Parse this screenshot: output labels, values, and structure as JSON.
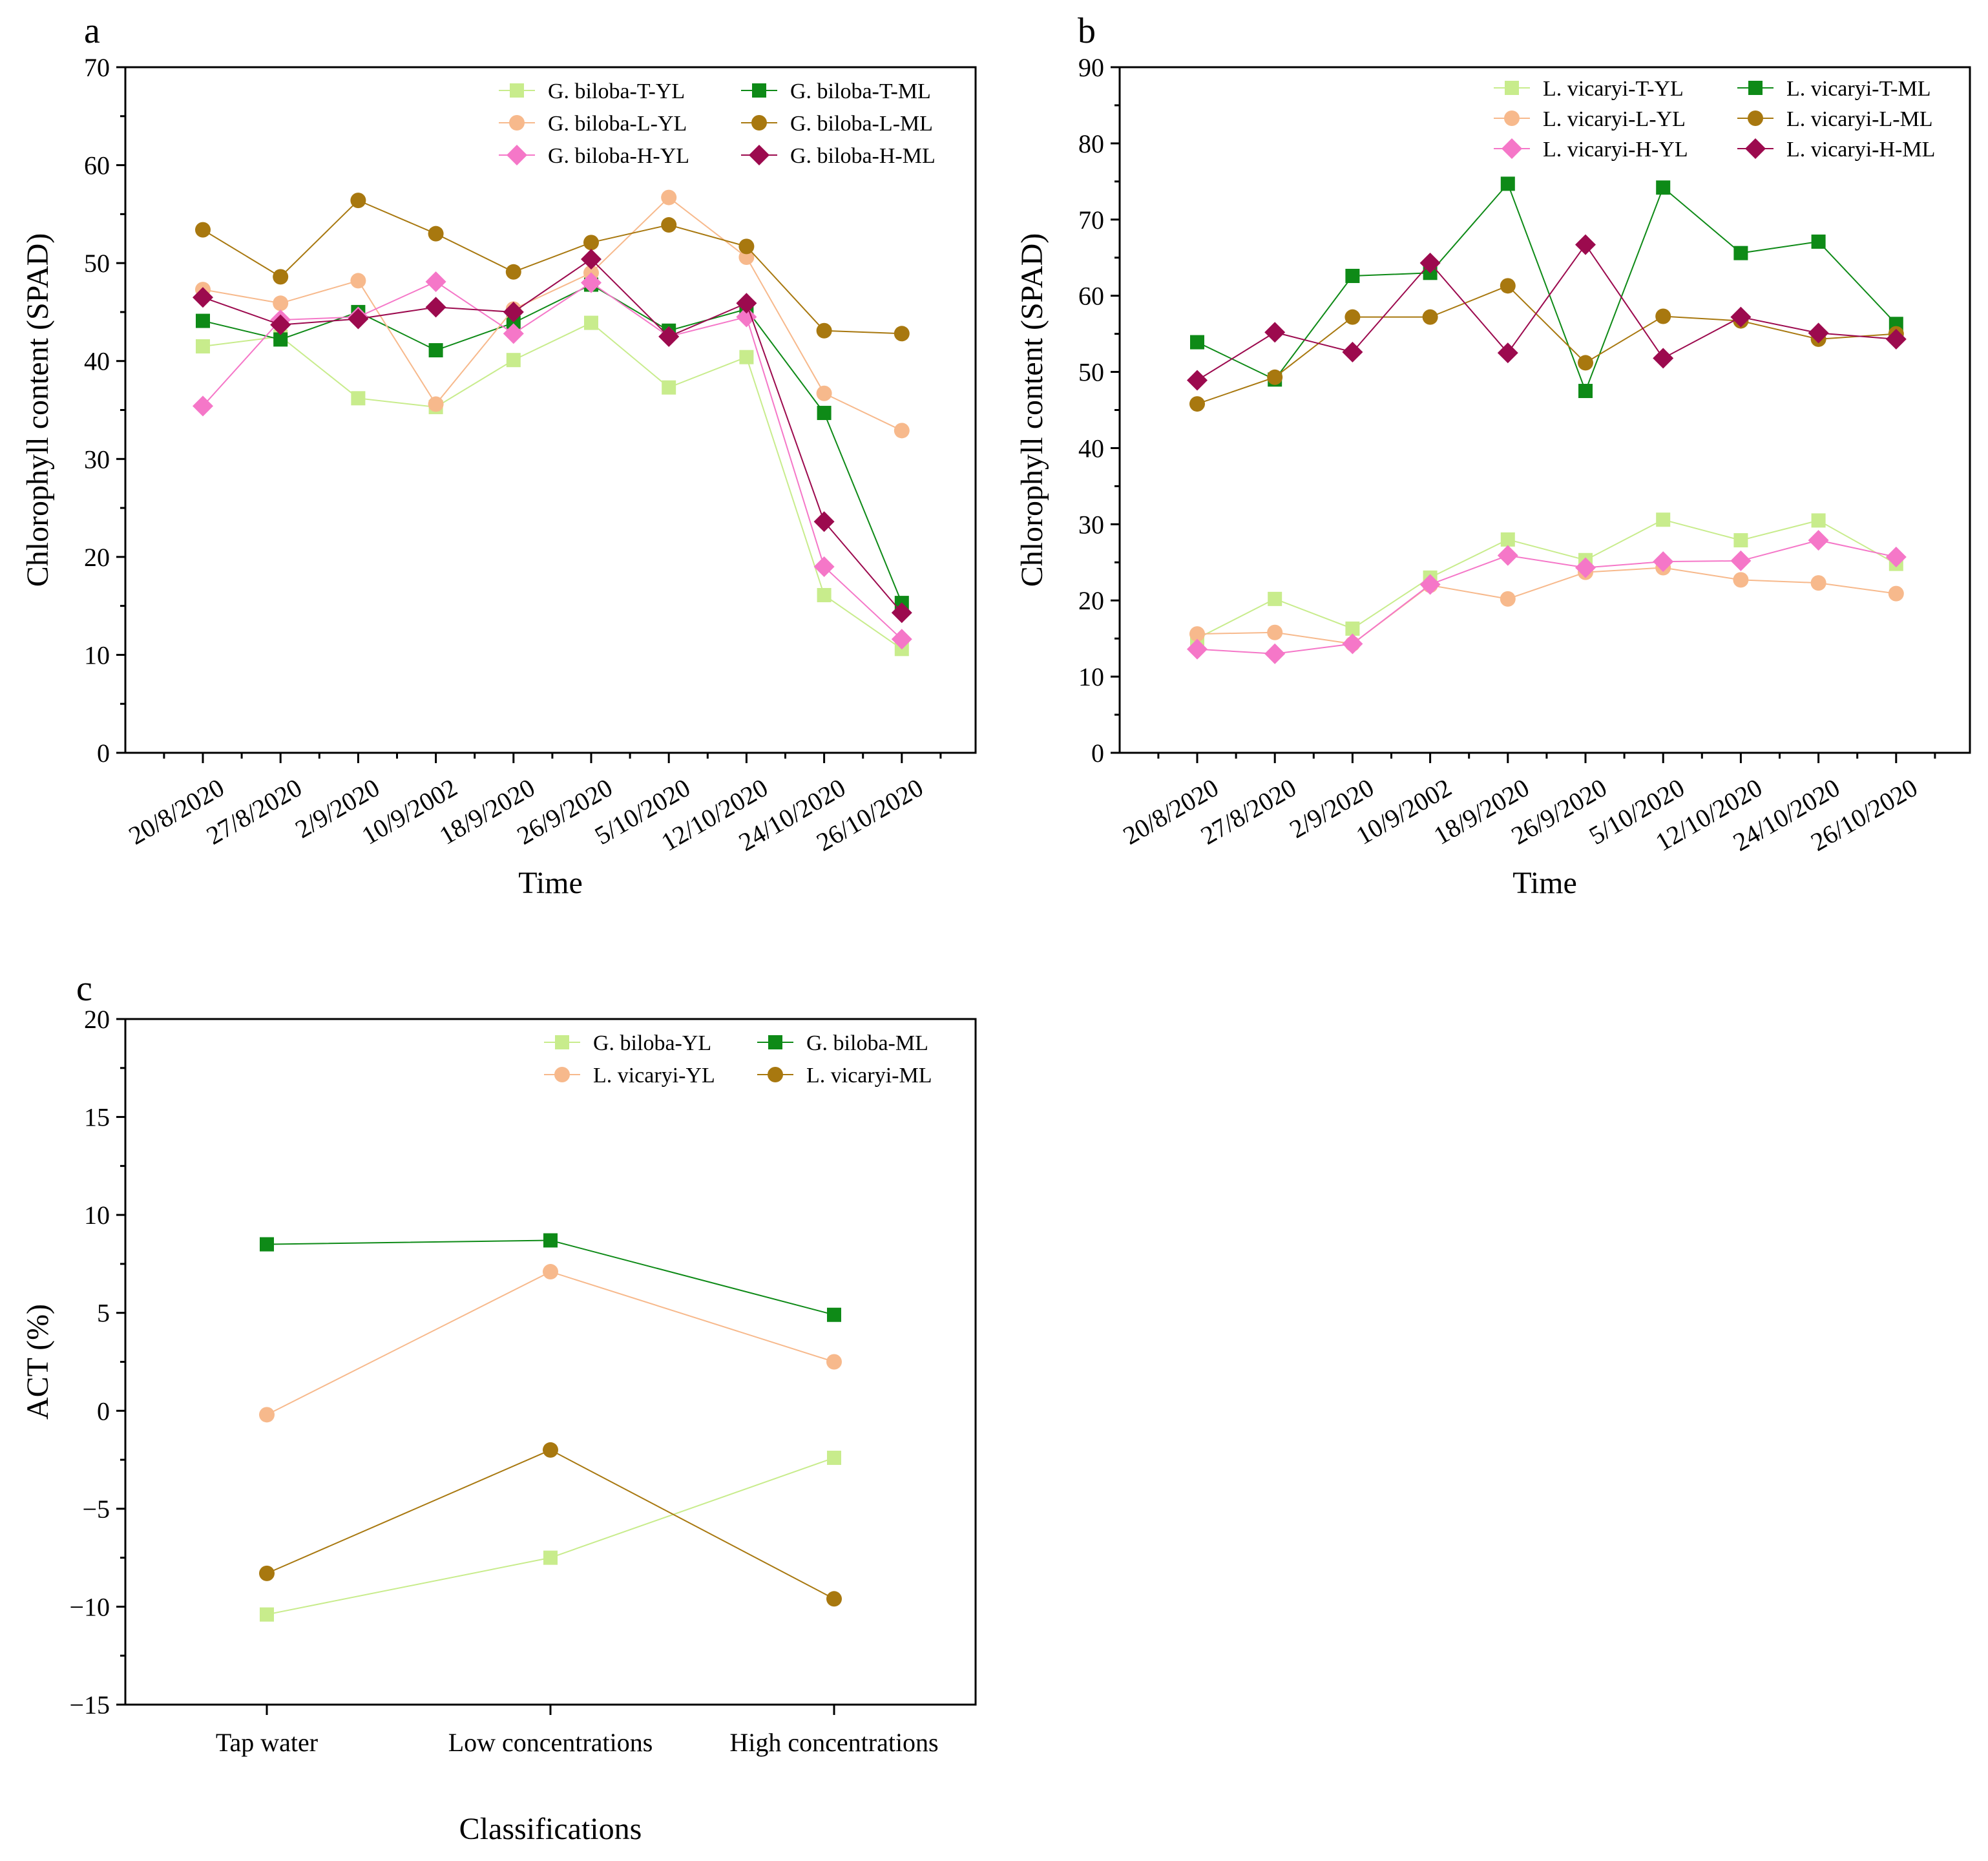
{
  "chart_data": [
    {
      "panel": "a",
      "type": "line",
      "xlabel": "Time",
      "ylabel": "Chlorophyll content (SPAD)",
      "ylim": [
        0,
        70
      ],
      "yticks": [
        0,
        10,
        20,
        30,
        40,
        50,
        60,
        70
      ],
      "categories": [
        "20/8/2020",
        "27/8/2020",
        "2/9/2020",
        "10/9/2002",
        "18/9/2020",
        "26/9/2020",
        "5/10/2020",
        "12/10/2020",
        "24/10/2020",
        "26/10/2020"
      ],
      "series": [
        {
          "name": "G. biloba-T-YL",
          "color": "#c8ec8c",
          "marker": "square",
          "values": [
            41.5,
            42.5,
            36.2,
            35.3,
            40.1,
            43.9,
            37.3,
            40.4,
            16.1,
            10.6
          ]
        },
        {
          "name": "G. biloba-T-ML",
          "color": "#0e8a17",
          "marker": "square",
          "values": [
            44.1,
            42.2,
            45.0,
            41.1,
            43.9,
            47.8,
            43.1,
            45.3,
            34.7,
            15.3
          ]
        },
        {
          "name": "G. biloba-L-YL",
          "color": "#f7b98c",
          "marker": "circle",
          "values": [
            47.3,
            45.9,
            48.2,
            35.6,
            45.3,
            49.0,
            56.7,
            50.6,
            36.7,
            32.9
          ]
        },
        {
          "name": "G. biloba-L-ML",
          "color": "#a8780f",
          "marker": "circle",
          "values": [
            53.4,
            48.6,
            56.4,
            53.0,
            49.1,
            52.1,
            53.9,
            51.7,
            43.1,
            42.8
          ]
        },
        {
          "name": "G. biloba-H-YL",
          "color": "#f577c8",
          "marker": "diamond",
          "values": [
            35.4,
            44.2,
            44.5,
            48.1,
            42.8,
            48.0,
            42.5,
            44.5,
            19.0,
            11.6
          ]
        },
        {
          "name": "G. biloba-H-ML",
          "color": "#9c0a4e",
          "marker": "diamond",
          "values": [
            46.5,
            43.7,
            44.3,
            45.5,
            45.0,
            50.4,
            42.5,
            45.9,
            23.6,
            14.3
          ]
        }
      ]
    },
    {
      "panel": "b",
      "type": "line",
      "xlabel": "Time",
      "ylabel": "Chlorophyll content (SPAD)",
      "ylim": [
        0,
        90
      ],
      "yticks": [
        0,
        10,
        20,
        30,
        40,
        50,
        60,
        70,
        80,
        90
      ],
      "categories": [
        "20/8/2020",
        "27/8/2020",
        "2/9/2020",
        "10/9/2002",
        "18/9/2020",
        "26/9/2020",
        "5/10/2020",
        "12/10/2020",
        "24/10/2020",
        "26/10/2020"
      ],
      "series": [
        {
          "name": "L. vicaryi-T-YL",
          "color": "#c8ec8c",
          "marker": "square",
          "values": [
            15.0,
            20.2,
            16.3,
            23.0,
            28.0,
            25.3,
            30.6,
            27.9,
            30.5,
            24.8
          ]
        },
        {
          "name": "L. vicaryi-T-ML",
          "color": "#0e8a17",
          "marker": "square",
          "values": [
            53.9,
            49.0,
            62.6,
            63.0,
            74.7,
            47.5,
            74.2,
            65.6,
            67.1,
            56.3
          ]
        },
        {
          "name": "L. vicaryi-L-YL",
          "color": "#f7b98c",
          "marker": "circle",
          "values": [
            15.6,
            15.8,
            14.3,
            22.0,
            20.2,
            23.7,
            24.3,
            22.7,
            22.3,
            20.9
          ]
        },
        {
          "name": "L. vicaryi-L-ML",
          "color": "#a8780f",
          "marker": "circle",
          "values": [
            45.8,
            49.3,
            57.2,
            57.2,
            61.3,
            51.2,
            57.3,
            56.7,
            54.3,
            55.0
          ]
        },
        {
          "name": "L. vicaryi-H-YL",
          "color": "#f577c8",
          "marker": "diamond",
          "values": [
            13.6,
            13.0,
            14.3,
            22.1,
            25.9,
            24.3,
            25.1,
            25.2,
            27.9,
            25.7
          ]
        },
        {
          "name": "L. vicaryi-H-ML",
          "color": "#9c0a4e",
          "marker": "diamond",
          "values": [
            48.9,
            55.2,
            52.6,
            64.3,
            52.5,
            66.7,
            51.8,
            57.2,
            55.1,
            54.3
          ]
        }
      ]
    },
    {
      "panel": "c",
      "type": "line",
      "xlabel": "Classifications",
      "ylabel": "ACT (%)",
      "ylim": [
        -15,
        20
      ],
      "yticks": [
        -15,
        -10,
        -5,
        0,
        5,
        10,
        15,
        20
      ],
      "ytick_labels": [
        "−15",
        "−10",
        "−5",
        "0",
        "5",
        "10",
        "15",
        "20"
      ],
      "categories": [
        "Tap water",
        "Low concentrations",
        "High concentrations"
      ],
      "series": [
        {
          "name": "G. biloba-YL",
          "color": "#c8ec8c",
          "marker": "square",
          "values": [
            -10.4,
            -7.5,
            -2.4
          ]
        },
        {
          "name": "G. biloba-ML",
          "color": "#0e8a17",
          "marker": "square",
          "values": [
            8.5,
            8.7,
            4.9
          ]
        },
        {
          "name": "L. vicaryi-YL",
          "color": "#f7b98c",
          "marker": "circle",
          "values": [
            -0.2,
            7.1,
            2.5
          ]
        },
        {
          "name": "L. vicaryi-ML",
          "color": "#a8780f",
          "marker": "circle",
          "values": [
            -8.3,
            -2.0,
            -9.6
          ]
        }
      ]
    }
  ]
}
